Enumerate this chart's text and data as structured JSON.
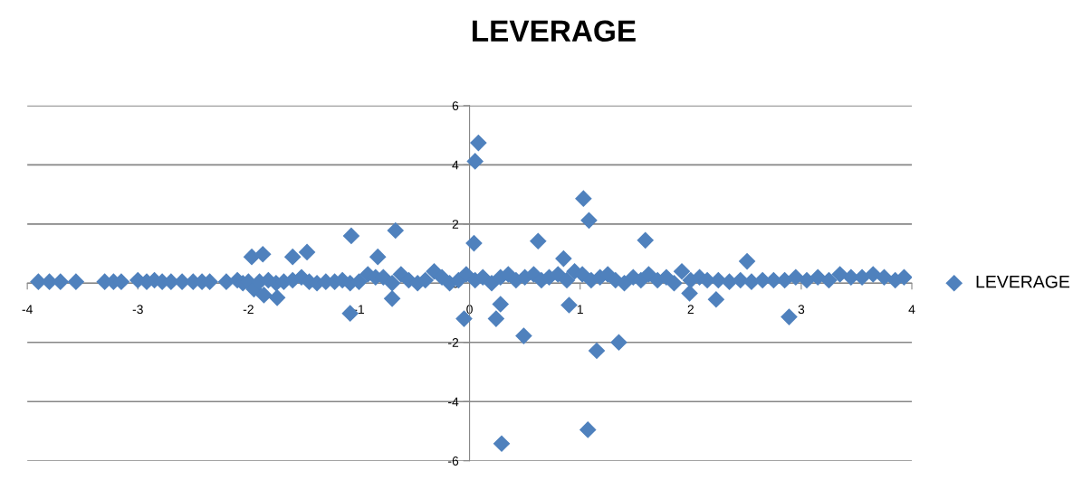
{
  "chart_data": {
    "type": "scatter",
    "title": "LEVERAGE",
    "series": [
      {
        "name": "LEVERAGE",
        "color": "#4f81bd",
        "x": [
          -3.9,
          -3.8,
          -3.7,
          -3.56,
          -3.3,
          -3.22,
          -3.15,
          -3.0,
          -2.92,
          -2.85,
          -2.78,
          -2.7,
          -2.6,
          -2.5,
          -2.42,
          -2.35,
          -2.2,
          -2.1,
          -2.05,
          -2.0,
          -1.95,
          -1.9,
          -1.82,
          -1.75,
          -1.68,
          -1.6,
          -1.52,
          -1.45,
          -1.38,
          -1.3,
          -1.22,
          -1.15,
          -1.08,
          -1.0,
          -0.92,
          -0.85,
          -0.78,
          -0.7,
          -0.62,
          -0.55,
          -0.47,
          -0.4,
          -0.32,
          -0.25,
          -0.18,
          -0.1,
          -0.03,
          0.05,
          0.12,
          0.2,
          0.28,
          0.35,
          0.42,
          0.5,
          0.58,
          0.65,
          0.72,
          0.8,
          0.88,
          0.95,
          1.02,
          1.1,
          1.18,
          1.25,
          1.32,
          1.4,
          1.48,
          1.55,
          1.62,
          1.7,
          1.78,
          1.85,
          1.92,
          2.0,
          2.08,
          2.15,
          2.25,
          2.35,
          2.45,
          2.55,
          2.65,
          2.75,
          2.85,
          2.95,
          3.05,
          3.15,
          3.25,
          3.35,
          3.45,
          3.55,
          3.65,
          3.75,
          3.85,
          3.93,
          0.08,
          0.05,
          1.03,
          1.08,
          0.04,
          0.62,
          1.59,
          0.85,
          2.51,
          -1.07,
          -0.67,
          -0.83,
          -1.97,
          -1.87,
          -1.6,
          -1.47,
          -1.08,
          -0.05,
          0.24,
          0.28,
          0.49,
          1.15,
          1.35,
          1.07,
          0.29,
          2.89,
          0.9,
          1.99,
          2.23,
          -0.7,
          -1.86,
          -1.74
        ],
        "values": [
          0.05,
          0.05,
          0.05,
          0.05,
          0.05,
          0.05,
          0.05,
          0.1,
          0.05,
          0.1,
          0.05,
          0.05,
          0.05,
          0.05,
          0.05,
          0.05,
          0.05,
          0.1,
          0.0,
          0.05,
          -0.2,
          0.05,
          0.1,
          0.0,
          0.05,
          0.1,
          0.2,
          0.05,
          0.0,
          0.05,
          0.05,
          0.1,
          0.0,
          0.05,
          0.3,
          0.2,
          0.2,
          0.0,
          0.3,
          0.1,
          0.0,
          0.1,
          0.4,
          0.2,
          0.0,
          0.1,
          0.3,
          0.1,
          0.2,
          0.0,
          0.2,
          0.3,
          0.1,
          0.2,
          0.3,
          0.1,
          0.2,
          0.3,
          0.1,
          0.4,
          0.3,
          0.1,
          0.2,
          0.3,
          0.1,
          0.0,
          0.2,
          0.1,
          0.3,
          0.1,
          0.2,
          0.0,
          0.4,
          0.1,
          0.2,
          0.1,
          0.1,
          0.05,
          0.1,
          0.05,
          0.1,
          0.1,
          0.1,
          0.2,
          0.1,
          0.2,
          0.1,
          0.3,
          0.2,
          0.2,
          0.3,
          0.2,
          0.1,
          0.2,
          4.74,
          4.12,
          2.86,
          2.12,
          1.35,
          1.42,
          1.45,
          0.83,
          0.74,
          1.6,
          1.78,
          0.89,
          0.89,
          0.98,
          0.89,
          1.05,
          -1.02,
          -1.2,
          -1.2,
          -0.71,
          -1.78,
          -2.28,
          -2.0,
          -4.95,
          -5.42,
          -1.14,
          -0.74,
          -0.34,
          -0.55,
          -0.52,
          -0.4,
          -0.49
        ]
      }
    ],
    "xlim": [
      -4,
      4
    ],
    "xticks": [
      -4,
      -3,
      -2,
      -1,
      0,
      1,
      2,
      3,
      4
    ],
    "ylim": [
      -6,
      6
    ],
    "yticks": [
      -6,
      -4,
      -2,
      0,
      2,
      4,
      6
    ],
    "grid": "y",
    "legend": "right",
    "marker": "diamond"
  }
}
